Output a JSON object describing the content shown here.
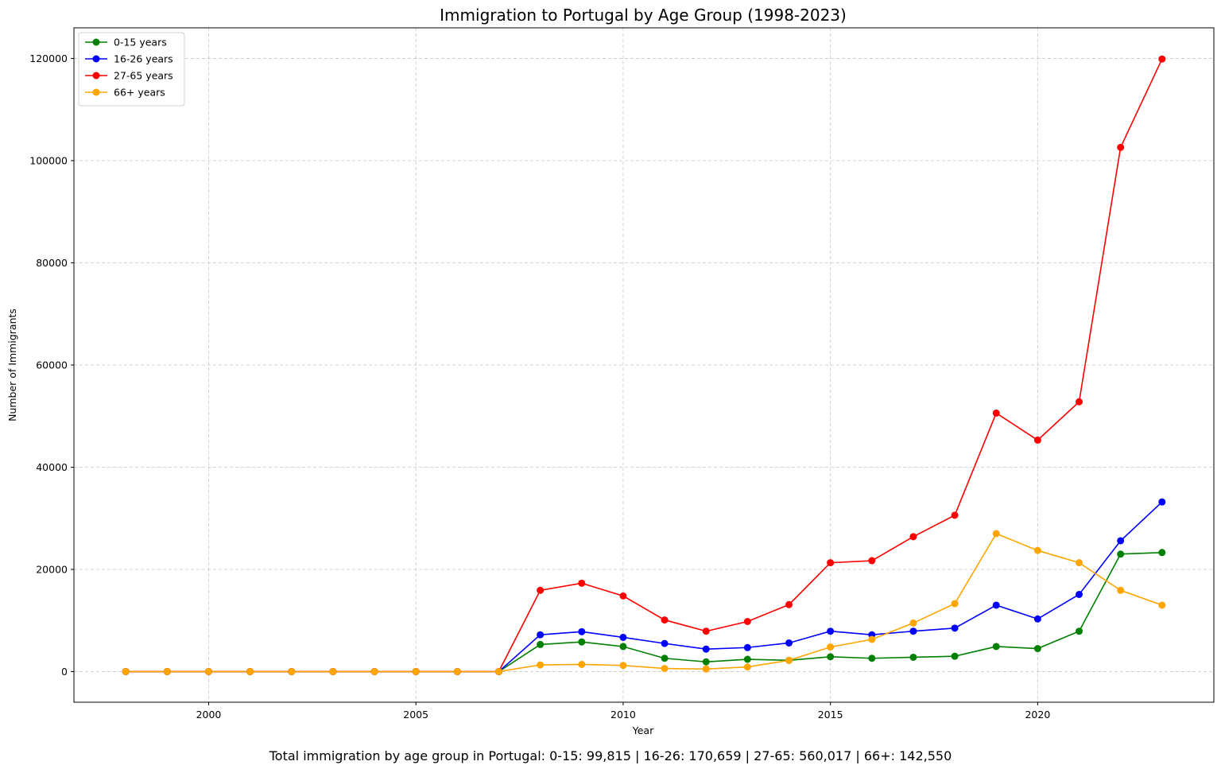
{
  "chart_data": {
    "type": "line",
    "title": "Immigration to Portugal by Age Group (1998-2023)",
    "xlabel": "Year",
    "ylabel": "Number of Immigrants",
    "xlim": [
      1996.75,
      2024.25
    ],
    "ylim": [
      -6000,
      126000
    ],
    "x_ticks": [
      2000,
      2005,
      2010,
      2015,
      2020
    ],
    "y_ticks": [
      0,
      20000,
      40000,
      60000,
      80000,
      100000,
      120000
    ],
    "grid": true,
    "legend_position": "top-left",
    "x": [
      1998,
      1999,
      2000,
      2001,
      2002,
      2003,
      2004,
      2005,
      2006,
      2007,
      2008,
      2009,
      2010,
      2011,
      2012,
      2013,
      2014,
      2015,
      2016,
      2017,
      2018,
      2019,
      2020,
      2021,
      2022,
      2023
    ],
    "series": [
      {
        "name": "0-15 years",
        "color": "#008000",
        "values": [
          0,
          0,
          0,
          0,
          0,
          0,
          0,
          0,
          0,
          0,
          5300,
          5800,
          4900,
          2600,
          1900,
          2400,
          2200,
          2900,
          2600,
          2800,
          3000,
          4900,
          4500,
          7900,
          23000,
          23300
        ]
      },
      {
        "name": "16-26 years",
        "color": "#0000ff",
        "values": [
          0,
          0,
          0,
          0,
          0,
          0,
          0,
          0,
          0,
          0,
          7200,
          7800,
          6700,
          5500,
          4400,
          4700,
          5600,
          7900,
          7200,
          7900,
          8500,
          13000,
          10300,
          15100,
          25600,
          33200
        ]
      },
      {
        "name": "27-65 years",
        "color": "#ff0000",
        "values": [
          0,
          0,
          0,
          0,
          0,
          0,
          0,
          0,
          0,
          0,
          15900,
          17300,
          14800,
          10100,
          7900,
          9800,
          13100,
          21300,
          21700,
          26400,
          30600,
          50600,
          45300,
          52800,
          102600,
          119900
        ]
      },
      {
        "name": "66+ years",
        "color": "#ffa500",
        "values": [
          0,
          0,
          0,
          0,
          0,
          0,
          0,
          0,
          0,
          0,
          1300,
          1400,
          1200,
          600,
          500,
          900,
          2200,
          4800,
          6300,
          9500,
          13300,
          27000,
          23700,
          21300,
          15900,
          13000
        ]
      }
    ]
  },
  "caption": "Total immigration by age group in Portugal: 0-15: 99,815 | 16-26: 170,659 | 27-65: 560,017 | 66+: 142,550"
}
